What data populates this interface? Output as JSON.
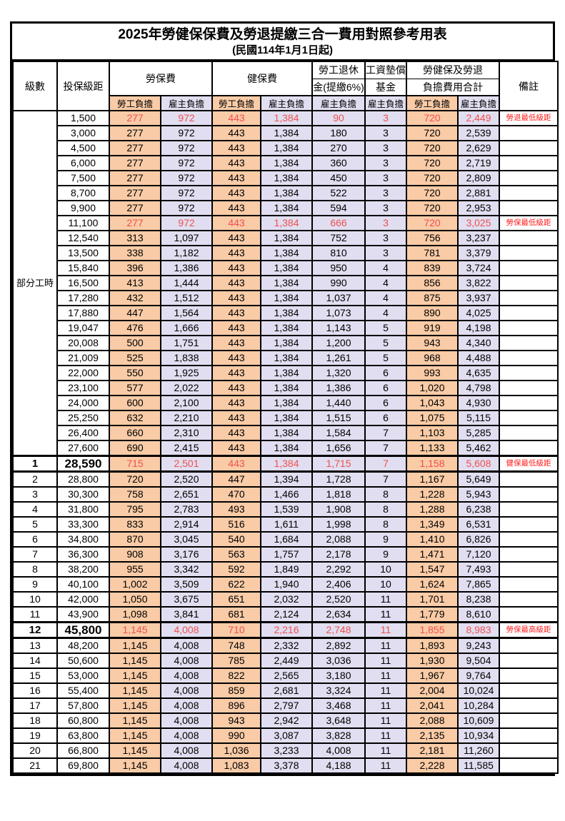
{
  "title": "2025年勞健保保費及勞退提繳三合一費用對照參考用表",
  "subtitle": "(民國114年1月1日起)",
  "colors": {
    "employee_bg": "#F9CBA6",
    "employer_bg": "#E0DEF0",
    "red_number": "#F05050",
    "red_remark": "#FF1E1E",
    "border": "#000000"
  },
  "header": {
    "level": "級數",
    "bracket": "投保級距",
    "labor_fee": "勞保費",
    "health_fee": "健保費",
    "pension_line1": "勞工退休",
    "pension_line2": "金(提繳6%)",
    "wage_fund_line1": "工資墊償",
    "wage_fund_line2": "基金",
    "total_line1": "勞健保及勞退",
    "total_line2": "負擔費用合計",
    "remark": "備註",
    "employee": "勞工負擔",
    "employer": "雇主負擔"
  },
  "part_time_label": "部分工時",
  "rows": [
    {
      "level": "",
      "bracket": "1,500",
      "values": [
        "277",
        "972",
        "443",
        "1,384",
        "90",
        "3",
        "720",
        "2,449"
      ],
      "remark": "勞退最低級距",
      "red": true
    },
    {
      "level": "",
      "bracket": "3,000",
      "values": [
        "277",
        "972",
        "443",
        "1,384",
        "180",
        "3",
        "720",
        "2,539"
      ]
    },
    {
      "level": "",
      "bracket": "4,500",
      "values": [
        "277",
        "972",
        "443",
        "1,384",
        "270",
        "3",
        "720",
        "2,629"
      ]
    },
    {
      "level": "",
      "bracket": "6,000",
      "values": [
        "277",
        "972",
        "443",
        "1,384",
        "360",
        "3",
        "720",
        "2,719"
      ]
    },
    {
      "level": "",
      "bracket": "7,500",
      "values": [
        "277",
        "972",
        "443",
        "1,384",
        "450",
        "3",
        "720",
        "2,809"
      ]
    },
    {
      "level": "",
      "bracket": "8,700",
      "values": [
        "277",
        "972",
        "443",
        "1,384",
        "522",
        "3",
        "720",
        "2,881"
      ]
    },
    {
      "level": "",
      "bracket": "9,900",
      "values": [
        "277",
        "972",
        "443",
        "1,384",
        "594",
        "3",
        "720",
        "2,953"
      ]
    },
    {
      "level": "",
      "bracket": "11,100",
      "values": [
        "277",
        "972",
        "443",
        "1,384",
        "666",
        "3",
        "720",
        "3,025"
      ],
      "remark": "勞保最低級距",
      "red": true
    },
    {
      "level": "",
      "bracket": "12,540",
      "values": [
        "313",
        "1,097",
        "443",
        "1,384",
        "752",
        "3",
        "756",
        "3,237"
      ]
    },
    {
      "level": "",
      "bracket": "13,500",
      "values": [
        "338",
        "1,182",
        "443",
        "1,384",
        "810",
        "3",
        "781",
        "3,379"
      ]
    },
    {
      "level": "",
      "bracket": "15,840",
      "values": [
        "396",
        "1,386",
        "443",
        "1,384",
        "950",
        "4",
        "839",
        "3,724"
      ]
    },
    {
      "level": "",
      "bracket": "16,500",
      "values": [
        "413",
        "1,444",
        "443",
        "1,384",
        "990",
        "4",
        "856",
        "3,822"
      ]
    },
    {
      "level": "",
      "bracket": "17,280",
      "values": [
        "432",
        "1,512",
        "443",
        "1,384",
        "1,037",
        "4",
        "875",
        "3,937"
      ]
    },
    {
      "level": "",
      "bracket": "17,880",
      "values": [
        "447",
        "1,564",
        "443",
        "1,384",
        "1,073",
        "4",
        "890",
        "4,025"
      ]
    },
    {
      "level": "",
      "bracket": "19,047",
      "values": [
        "476",
        "1,666",
        "443",
        "1,384",
        "1,143",
        "5",
        "919",
        "4,198"
      ]
    },
    {
      "level": "",
      "bracket": "20,008",
      "values": [
        "500",
        "1,751",
        "443",
        "1,384",
        "1,200",
        "5",
        "943",
        "4,340"
      ]
    },
    {
      "level": "",
      "bracket": "21,009",
      "values": [
        "525",
        "1,838",
        "443",
        "1,384",
        "1,261",
        "5",
        "968",
        "4,488"
      ]
    },
    {
      "level": "",
      "bracket": "22,000",
      "values": [
        "550",
        "1,925",
        "443",
        "1,384",
        "1,320",
        "6",
        "993",
        "4,635"
      ]
    },
    {
      "level": "",
      "bracket": "23,100",
      "values": [
        "577",
        "2,022",
        "443",
        "1,384",
        "1,386",
        "6",
        "1,020",
        "4,798"
      ]
    },
    {
      "level": "",
      "bracket": "24,000",
      "values": [
        "600",
        "2,100",
        "443",
        "1,384",
        "1,440",
        "6",
        "1,043",
        "4,930"
      ]
    },
    {
      "level": "",
      "bracket": "25,250",
      "values": [
        "632",
        "2,210",
        "443",
        "1,384",
        "1,515",
        "6",
        "1,075",
        "5,115"
      ]
    },
    {
      "level": "",
      "bracket": "26,400",
      "values": [
        "660",
        "2,310",
        "443",
        "1,384",
        "1,584",
        "7",
        "1,103",
        "5,285"
      ]
    },
    {
      "level": "",
      "bracket": "27,600",
      "values": [
        "690",
        "2,415",
        "443",
        "1,384",
        "1,656",
        "7",
        "1,133",
        "5,462"
      ]
    },
    {
      "level": "1",
      "bracket": "28,590",
      "values": [
        "715",
        "2,501",
        "443",
        "1,384",
        "1,715",
        "7",
        "1,158",
        "5,608"
      ],
      "remark": "健保最低級距",
      "red": true,
      "special": true
    },
    {
      "level": "2",
      "bracket": "28,800",
      "values": [
        "720",
        "2,520",
        "447",
        "1,394",
        "1,728",
        "7",
        "1,167",
        "5,649"
      ]
    },
    {
      "level": "3",
      "bracket": "30,300",
      "values": [
        "758",
        "2,651",
        "470",
        "1,466",
        "1,818",
        "8",
        "1,228",
        "5,943"
      ]
    },
    {
      "level": "4",
      "bracket": "31,800",
      "values": [
        "795",
        "2,783",
        "493",
        "1,539",
        "1,908",
        "8",
        "1,288",
        "6,238"
      ]
    },
    {
      "level": "5",
      "bracket": "33,300",
      "values": [
        "833",
        "2,914",
        "516",
        "1,611",
        "1,998",
        "8",
        "1,349",
        "6,531"
      ]
    },
    {
      "level": "6",
      "bracket": "34,800",
      "values": [
        "870",
        "3,045",
        "540",
        "1,684",
        "2,088",
        "9",
        "1,410",
        "6,826"
      ]
    },
    {
      "level": "7",
      "bracket": "36,300",
      "values": [
        "908",
        "3,176",
        "563",
        "1,757",
        "2,178",
        "9",
        "1,471",
        "7,120"
      ]
    },
    {
      "level": "8",
      "bracket": "38,200",
      "values": [
        "955",
        "3,342",
        "592",
        "1,849",
        "2,292",
        "10",
        "1,547",
        "7,493"
      ]
    },
    {
      "level": "9",
      "bracket": "40,100",
      "values": [
        "1,002",
        "3,509",
        "622",
        "1,940",
        "2,406",
        "10",
        "1,624",
        "7,865"
      ]
    },
    {
      "level": "10",
      "bracket": "42,000",
      "values": [
        "1,050",
        "3,675",
        "651",
        "2,032",
        "2,520",
        "11",
        "1,701",
        "8,238"
      ]
    },
    {
      "level": "11",
      "bracket": "43,900",
      "values": [
        "1,098",
        "3,841",
        "681",
        "2,124",
        "2,634",
        "11",
        "1,779",
        "8,610"
      ]
    },
    {
      "level": "12",
      "bracket": "45,800",
      "values": [
        "1,145",
        "4,008",
        "710",
        "2,216",
        "2,748",
        "11",
        "1,855",
        "8,983"
      ],
      "remark": "勞保最高級距",
      "red": true,
      "special": true
    },
    {
      "level": "13",
      "bracket": "48,200",
      "values": [
        "1,145",
        "4,008",
        "748",
        "2,332",
        "2,892",
        "11",
        "1,893",
        "9,243"
      ]
    },
    {
      "level": "14",
      "bracket": "50,600",
      "values": [
        "1,145",
        "4,008",
        "785",
        "2,449",
        "3,036",
        "11",
        "1,930",
        "9,504"
      ]
    },
    {
      "level": "15",
      "bracket": "53,000",
      "values": [
        "1,145",
        "4,008",
        "822",
        "2,565",
        "3,180",
        "11",
        "1,967",
        "9,764"
      ]
    },
    {
      "level": "16",
      "bracket": "55,400",
      "values": [
        "1,145",
        "4,008",
        "859",
        "2,681",
        "3,324",
        "11",
        "2,004",
        "10,024"
      ]
    },
    {
      "level": "17",
      "bracket": "57,800",
      "values": [
        "1,145",
        "4,008",
        "896",
        "2,797",
        "3,468",
        "11",
        "2,041",
        "10,284"
      ]
    },
    {
      "level": "18",
      "bracket": "60,800",
      "values": [
        "1,145",
        "4,008",
        "943",
        "2,942",
        "3,648",
        "11",
        "2,088",
        "10,609"
      ]
    },
    {
      "level": "19",
      "bracket": "63,800",
      "values": [
        "1,145",
        "4,008",
        "990",
        "3,087",
        "3,828",
        "11",
        "2,135",
        "10,934"
      ]
    },
    {
      "level": "20",
      "bracket": "66,800",
      "values": [
        "1,145",
        "4,008",
        "1,036",
        "3,233",
        "4,008",
        "11",
        "2,181",
        "11,260"
      ]
    },
    {
      "level": "21",
      "bracket": "69,800",
      "values": [
        "1,145",
        "4,008",
        "1,083",
        "3,378",
        "4,188",
        "11",
        "2,228",
        "11,585"
      ]
    }
  ]
}
